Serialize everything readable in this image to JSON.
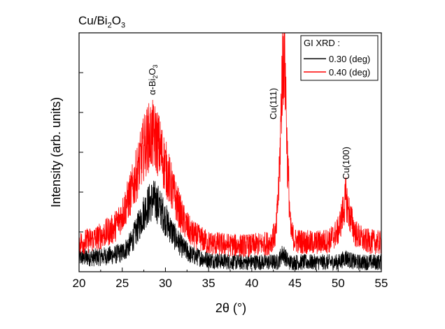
{
  "chart_data": {
    "type": "line",
    "title": "Cu/Bi2O3",
    "title_parts": {
      "base": "Cu/Bi",
      "sub1": "2",
      "mid": "O",
      "sub2": "3"
    },
    "xlabel": "2θ (°)",
    "ylabel": "Intensity (arb. units)",
    "xlim": [
      20,
      55
    ],
    "x_ticks": [
      20,
      25,
      30,
      35,
      40,
      45,
      50,
      55
    ],
    "y_tick_labels": "none",
    "legend": {
      "title": "GI XRD :",
      "placement": "top-right",
      "entries": [
        "0.30 (deg)",
        "0.40 (deg)"
      ]
    },
    "annotations": [
      {
        "text": "α-Bi2O3",
        "parts": [
          "α-Bi",
          "2",
          "O",
          "3"
        ],
        "x": 28.7
      },
      {
        "text": "Cu(111)",
        "x": 42.6
      },
      {
        "text": "Cu(100)",
        "x": 50.9
      }
    ],
    "series": [
      {
        "name": "0.30 (deg)",
        "color": "#000000",
        "x": [
          20,
          22,
          24,
          25,
          26,
          27,
          27.5,
          28,
          28.5,
          29,
          29.5,
          30,
          31,
          32,
          33,
          35,
          38,
          40,
          42,
          43,
          43.3,
          43.6,
          43.9,
          44.3,
          45,
          47,
          49,
          50,
          50.5,
          50.9,
          51.3,
          52,
          53,
          55
        ],
        "values": [
          0.06,
          0.06,
          0.07,
          0.08,
          0.12,
          0.2,
          0.25,
          0.28,
          0.3,
          0.29,
          0.26,
          0.22,
          0.15,
          0.1,
          0.07,
          0.05,
          0.04,
          0.04,
          0.04,
          0.04,
          0.06,
          0.08,
          0.06,
          0.04,
          0.04,
          0.04,
          0.04,
          0.04,
          0.05,
          0.06,
          0.05,
          0.04,
          0.04,
          0.04
        ]
      },
      {
        "name": "0.40 (deg)",
        "color": "#ff0000",
        "x": [
          20,
          22,
          24,
          25,
          26,
          27,
          27.5,
          28,
          28.5,
          29,
          29.5,
          30,
          31,
          32,
          33,
          35,
          38,
          40,
          42,
          42.8,
          43.2,
          43.5,
          43.8,
          44.1,
          44.5,
          45,
          47,
          49,
          50,
          50.5,
          50.9,
          51.3,
          52,
          53,
          55
        ],
        "values": [
          0.12,
          0.14,
          0.18,
          0.24,
          0.33,
          0.45,
          0.52,
          0.56,
          0.57,
          0.55,
          0.5,
          0.44,
          0.32,
          0.22,
          0.16,
          0.12,
          0.11,
          0.11,
          0.12,
          0.16,
          0.4,
          0.82,
          0.95,
          0.5,
          0.17,
          0.13,
          0.12,
          0.13,
          0.17,
          0.24,
          0.31,
          0.24,
          0.16,
          0.13,
          0.12
        ]
      }
    ]
  }
}
